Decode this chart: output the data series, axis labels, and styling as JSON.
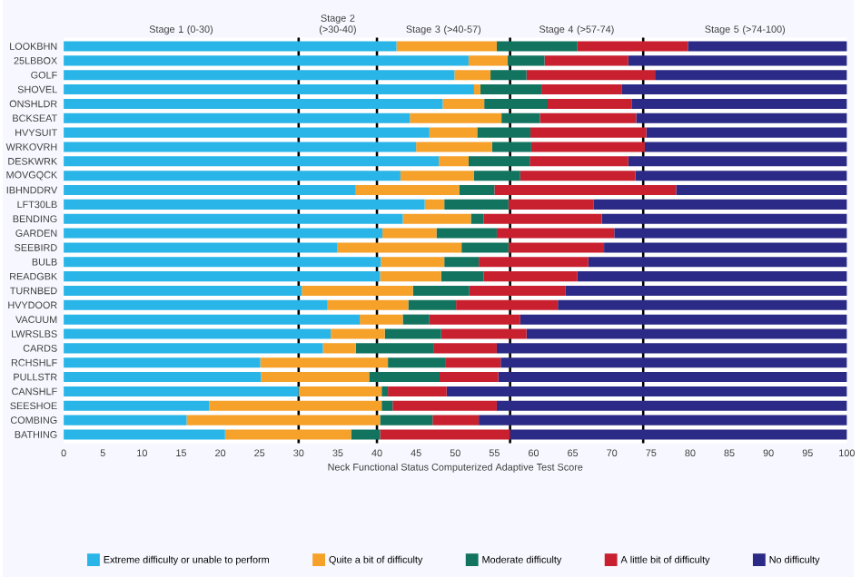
{
  "chart_data": {
    "type": "bar",
    "orientation": "horizontal",
    "stacked": true,
    "xlabel": "Neck Functional Status Computerized Adaptive Test Score",
    "categories": [
      "LOOKBHN",
      "25LBBOX",
      "GOLF",
      "SHOVEL",
      "ONSHLDR",
      "BCKSEAT",
      "HVYSUIT",
      "WRKOVRH",
      "DESKWRK",
      "MOVGQCK",
      "IBHNDDRV",
      "LFT30LB",
      "BENDING",
      "GARDEN",
      "SEEBIRD",
      "BULB",
      "READGBK",
      "TURNBED",
      "HVYDOOR",
      "VACUUM",
      "LWRSLBS",
      "CARDS",
      "RCHSHLF",
      "PULLSTR",
      "CANSHLF",
      "SEESHOE",
      "COMBING",
      "BATHING"
    ],
    "series": [
      {
        "name": "Extreme difficulty or unable to perform",
        "color": "#29b5e8",
        "values": [
          42.5,
          51.7,
          49.9,
          52.4,
          48.4,
          44.2,
          46.7,
          45.0,
          47.9,
          43.0,
          37.3,
          46.1,
          43.3,
          40.7,
          34.9,
          40.5,
          40.4,
          30.4,
          33.7,
          37.8,
          34.1,
          33.1,
          25.1,
          25.2,
          30.0,
          18.6,
          15.7,
          20.6
        ]
      },
      {
        "name": "Quite a bit of difficulty",
        "color": "#f5a12a",
        "values": [
          12.8,
          5.0,
          4.6,
          0.8,
          5.3,
          11.7,
          6.1,
          9.7,
          3.8,
          9.4,
          13.2,
          2.5,
          8.7,
          6.9,
          15.9,
          8.1,
          7.8,
          14.2,
          10.3,
          5.5,
          6.9,
          4.2,
          16.3,
          13.8,
          10.6,
          22.0,
          24.7,
          16.1
        ]
      },
      {
        "name": "Moderate difficulty",
        "color": "#12735f",
        "values": [
          10.3,
          4.7,
          4.6,
          7.8,
          8.1,
          4.9,
          6.8,
          5.0,
          7.8,
          5.9,
          4.5,
          8.2,
          1.6,
          7.7,
          6.0,
          4.4,
          5.4,
          7.2,
          6.1,
          3.4,
          7.2,
          9.9,
          7.4,
          9.0,
          0.8,
          1.4,
          6.7,
          3.7
        ]
      },
      {
        "name": "A little bit of difficulty",
        "color": "#c8202f",
        "values": [
          14.1,
          10.7,
          16.4,
          10.3,
          10.7,
          12.3,
          14.8,
          14.5,
          12.6,
          14.7,
          23.2,
          10.9,
          15.1,
          15.0,
          12.2,
          14.0,
          12.0,
          12.3,
          13.0,
          11.6,
          10.9,
          8.1,
          7.0,
          7.5,
          7.5,
          13.3,
          5.9,
          16.6
        ]
      },
      {
        "name": "No difficulty",
        "color": "#2b2a86",
        "values": [
          20.3,
          27.9,
          24.5,
          28.7,
          27.5,
          26.9,
          25.6,
          25.8,
          27.9,
          27.0,
          21.8,
          32.3,
          31.3,
          29.7,
          31.0,
          33.0,
          34.4,
          35.9,
          36.9,
          41.7,
          40.9,
          44.7,
          44.2,
          44.5,
          51.1,
          44.7,
          47.0,
          43.0
        ]
      }
    ],
    "xlim": [
      0,
      100
    ],
    "xticks": [
      0,
      5,
      10,
      15,
      20,
      25,
      30,
      35,
      40,
      45,
      50,
      55,
      60,
      65,
      70,
      75,
      80,
      85,
      90,
      95,
      100
    ],
    "ref_lines": [
      {
        "axis": "x",
        "value": 30,
        "color": "#000000"
      },
      {
        "axis": "x",
        "value": 40,
        "color": "#000000"
      },
      {
        "axis": "x",
        "value": 57,
        "color": "#000000"
      },
      {
        "axis": "x",
        "value": 74,
        "color": "#000000"
      }
    ],
    "annotations": [
      "Stage 1 (0-30)",
      "Stage 2 (>30-40)",
      "Stage 3 (>40-57)",
      "Stage 4 (>57-74)",
      "Stage 5 (>74-100)"
    ],
    "grid": false,
    "legend": "bottom"
  }
}
